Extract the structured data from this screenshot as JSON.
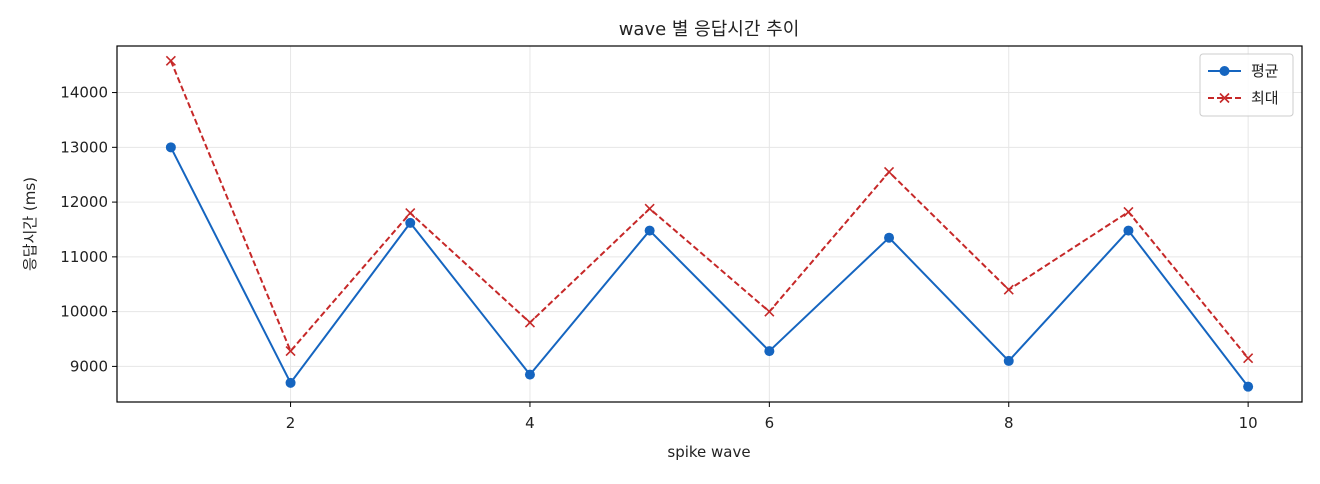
{
  "chart_data": {
    "type": "line",
    "title": "wave 별 응답시간 추이",
    "xlabel": "spike wave",
    "ylabel": "응답시간 (ms)",
    "x": [
      1,
      2,
      3,
      4,
      5,
      6,
      7,
      8,
      9,
      10
    ],
    "xlim": [
      0.55,
      10.45
    ],
    "ylim": [
      8350,
      14850
    ],
    "xticks": [
      2,
      4,
      6,
      8,
      10
    ],
    "yticks": [
      9000,
      10000,
      11000,
      12000,
      13000,
      14000
    ],
    "grid": true,
    "legend_position": "top-right",
    "series": [
      {
        "name": "평균",
        "values": [
          13000,
          8700,
          11620,
          8850,
          11480,
          9280,
          11350,
          9100,
          11480,
          8630
        ],
        "color": "#1565c0",
        "line_style": "solid",
        "marker": "circle"
      },
      {
        "name": "최대",
        "values": [
          14580,
          9280,
          11800,
          9800,
          11880,
          10000,
          12550,
          10400,
          11820,
          9150
        ],
        "color": "#c62828",
        "line_style": "dashed",
        "marker": "x"
      }
    ]
  }
}
